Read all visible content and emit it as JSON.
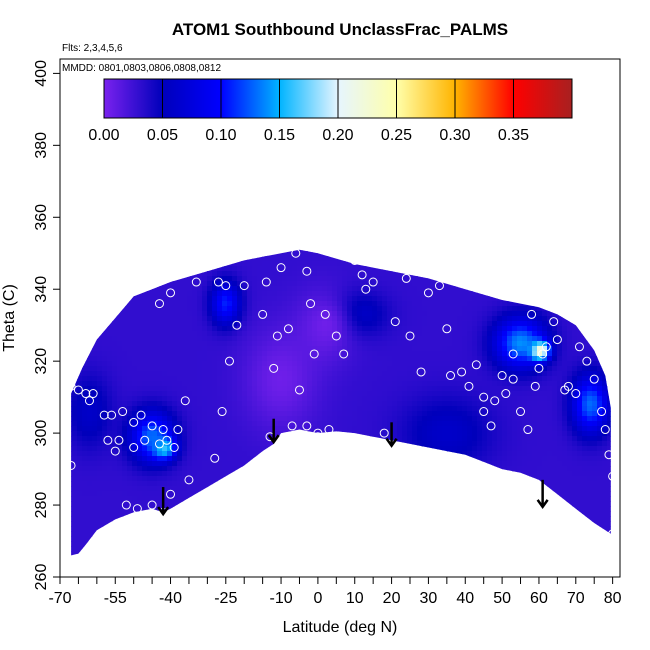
{
  "chart_data": {
    "type": "heatmap",
    "title": "ATOM1 Southbound UnclassFrac_PALMS",
    "flights_note": "Flts: 2,3,4,5,6",
    "dates_note": "MMDD: 0801,0803,0806,0808,0812",
    "xlabel": "Latitude (deg N)",
    "ylabel": "Theta (C)",
    "xlim": [
      -70,
      82
    ],
    "ylim": [
      260,
      404
    ],
    "x_major_ticks": [
      -70,
      -55,
      -40,
      -25,
      -10,
      0,
      10,
      20,
      30,
      40,
      50,
      60,
      70,
      80
    ],
    "x_tick_labels": [
      "-70",
      "-55",
      "-40",
      "-25",
      "-10",
      "0",
      "10",
      "20",
      "30",
      "40",
      "50",
      "60",
      "70",
      "80"
    ],
    "x_minor_ticks": [
      -65,
      -60,
      -50,
      -45,
      -35,
      -30,
      -20,
      -15,
      -5,
      5,
      15,
      25,
      35,
      45,
      55,
      65,
      75
    ],
    "y_ticks": [
      260,
      280,
      300,
      320,
      340,
      360,
      380,
      400
    ],
    "y_tick_labels": [
      "260",
      "280",
      "300",
      "320",
      "340",
      "360",
      "380",
      "400"
    ],
    "colorbar": {
      "range": [
        0,
        0.4
      ],
      "ticks": [
        0.0,
        0.05,
        0.1,
        0.15,
        0.2,
        0.25,
        0.3,
        0.35
      ],
      "tick_labels": [
        "0.00",
        "0.05",
        "0.10",
        "0.15",
        "0.20",
        "0.25",
        "0.30",
        "0.35"
      ],
      "colors": [
        "#7a22ee",
        "#0000bb",
        "#0000ff",
        "#00b4ff",
        "#e6f5ff",
        "#ffffaa",
        "#ffb400",
        "#ff0000",
        "#a82020"
      ]
    },
    "field_background": 0.03,
    "hotspots": [
      {
        "lat": 60,
        "theta": 323,
        "value": 0.33,
        "spread_lat": 2.5,
        "spread_theta": 2.5
      },
      {
        "lat": 55,
        "theta": 325,
        "value": 0.14,
        "spread_lat": 7,
        "spread_theta": 7
      },
      {
        "lat": -42,
        "theta": 296,
        "value": 0.21,
        "spread_lat": 3,
        "spread_theta": 3
      },
      {
        "lat": -45,
        "theta": 299,
        "value": 0.13,
        "spread_lat": 6,
        "spread_theta": 7
      },
      {
        "lat": 74,
        "theta": 308,
        "value": 0.13,
        "spread_lat": 5,
        "spread_theta": 8
      },
      {
        "lat": -25,
        "theta": 336,
        "value": 0.11,
        "spread_lat": 4,
        "spread_theta": 6
      },
      {
        "lat": -62,
        "theta": 306,
        "value": 0.06,
        "spread_lat": 6,
        "spread_theta": 10
      },
      {
        "lat": 10,
        "theta": 333,
        "value": 0.07,
        "spread_lat": 8,
        "spread_theta": 6
      },
      {
        "lat": 35,
        "theta": 300,
        "value": 0.06,
        "spread_lat": 12,
        "spread_theta": 10
      },
      {
        "lat": -10,
        "theta": 315,
        "value": 0.005,
        "spread_lat": 10,
        "spread_theta": 14
      },
      {
        "lat": 2,
        "theta": 330,
        "value": 0.005,
        "spread_lat": 8,
        "spread_theta": 10
      }
    ],
    "upper_boundary": [
      [
        -67,
        311
      ],
      [
        -64,
        318
      ],
      [
        -60,
        326
      ],
      [
        -55,
        332
      ],
      [
        -50,
        338
      ],
      [
        -45,
        340
      ],
      [
        -40,
        342
      ],
      [
        -30,
        345
      ],
      [
        -20,
        348
      ],
      [
        -15,
        349
      ],
      [
        -10,
        350
      ],
      [
        -5,
        351
      ],
      [
        0,
        350
      ],
      [
        10,
        347
      ],
      [
        20,
        345
      ],
      [
        30,
        343
      ],
      [
        40,
        340
      ],
      [
        50,
        337
      ],
      [
        55,
        336
      ],
      [
        60,
        335
      ],
      [
        65,
        333
      ],
      [
        70,
        330
      ],
      [
        75,
        323
      ],
      [
        78,
        316
      ],
      [
        79.5,
        307
      ]
    ],
    "lower_boundary": [
      [
        79.5,
        272
      ],
      [
        75,
        275
      ],
      [
        70,
        279
      ],
      [
        65,
        283
      ],
      [
        60,
        287
      ],
      [
        55,
        289
      ],
      [
        50,
        290
      ],
      [
        45,
        292
      ],
      [
        40,
        294
      ],
      [
        35,
        295
      ],
      [
        30,
        296
      ],
      [
        25,
        297
      ],
      [
        20,
        298
      ],
      [
        15,
        299
      ],
      [
        10,
        300
      ],
      [
        5,
        300.5
      ],
      [
        0,
        300
      ],
      [
        -5,
        301
      ],
      [
        -10,
        300
      ],
      [
        -12,
        297
      ],
      [
        -15,
        295
      ],
      [
        -20,
        291
      ],
      [
        -25,
        288
      ],
      [
        -30,
        285
      ],
      [
        -35,
        282
      ],
      [
        -40,
        279
      ],
      [
        -42,
        278
      ],
      [
        -45,
        279
      ],
      [
        -50,
        278
      ],
      [
        -55,
        276
      ],
      [
        -60,
        273
      ],
      [
        -63,
        269
      ],
      [
        -65,
        266.5
      ],
      [
        -67,
        266
      ]
    ],
    "sample_points": [
      [
        -67,
        313
      ],
      [
        -65,
        312
      ],
      [
        -63,
        311
      ],
      [
        -62,
        309
      ],
      [
        -61,
        311
      ],
      [
        -58,
        305
      ],
      [
        -56,
        305
      ],
      [
        -53,
        306
      ],
      [
        -50,
        303
      ],
      [
        -48,
        305
      ],
      [
        -45,
        302
      ],
      [
        -43,
        297
      ],
      [
        -42,
        301
      ],
      [
        -41,
        298
      ],
      [
        -39,
        296
      ],
      [
        -38,
        301
      ],
      [
        -36,
        309
      ],
      [
        -47,
        298
      ],
      [
        -50,
        296
      ],
      [
        -54,
        298
      ],
      [
        -57,
        298
      ],
      [
        -55,
        295
      ],
      [
        -67,
        291
      ],
      [
        -52,
        280
      ],
      [
        -49,
        279
      ],
      [
        -45,
        280
      ],
      [
        -42,
        278
      ],
      [
        -40,
        283
      ],
      [
        -35,
        287
      ],
      [
        -28,
        293
      ],
      [
        -26,
        306
      ],
      [
        -24,
        320
      ],
      [
        -22,
        330
      ],
      [
        -20,
        341
      ],
      [
        -25,
        341
      ],
      [
        -27,
        342
      ],
      [
        -15,
        333
      ],
      [
        -12,
        318
      ],
      [
        -11,
        327
      ],
      [
        -8,
        329
      ],
      [
        -7,
        302
      ],
      [
        -3,
        302
      ],
      [
        -13,
        299
      ],
      [
        -14,
        342
      ],
      [
        -10,
        346
      ],
      [
        -3,
        345
      ],
      [
        0,
        299
      ],
      [
        0,
        300
      ],
      [
        3,
        301
      ],
      [
        5,
        327
      ],
      [
        7,
        322
      ],
      [
        10,
        348
      ],
      [
        12,
        344
      ],
      [
        13,
        340
      ],
      [
        15,
        342
      ],
      [
        17,
        349
      ],
      [
        20,
        347
      ],
      [
        24,
        343
      ],
      [
        27,
        346
      ],
      [
        30,
        339
      ],
      [
        33,
        341
      ],
      [
        35,
        329
      ],
      [
        36,
        316
      ],
      [
        39,
        317
      ],
      [
        41,
        313
      ],
      [
        43,
        319
      ],
      [
        45,
        306
      ],
      [
        47,
        302
      ],
      [
        48,
        309
      ],
      [
        50,
        316
      ],
      [
        51,
        311
      ],
      [
        53,
        315
      ],
      [
        55,
        306
      ],
      [
        57,
        301
      ],
      [
        59,
        313
      ],
      [
        60,
        318
      ],
      [
        61,
        322
      ],
      [
        62,
        324
      ],
      [
        64,
        331
      ],
      [
        65,
        326
      ],
      [
        67,
        312
      ],
      [
        68,
        313
      ],
      [
        70,
        311
      ],
      [
        71,
        324
      ],
      [
        73,
        320
      ],
      [
        75,
        315
      ],
      [
        77,
        306
      ],
      [
        78,
        301
      ],
      [
        79,
        294
      ],
      [
        80,
        288
      ],
      [
        81,
        287
      ],
      [
        80,
        272
      ],
      [
        -62,
        342
      ],
      [
        -54,
        343
      ],
      [
        -43,
        336
      ],
      [
        -40,
        339
      ],
      [
        -33,
        342
      ],
      [
        -2,
        336
      ],
      [
        2,
        333
      ],
      [
        21,
        331
      ],
      [
        -5,
        312
      ],
      [
        -1,
        322
      ],
      [
        25,
        327
      ],
      [
        28,
        317
      ],
      [
        45,
        310
      ],
      [
        53,
        322
      ],
      [
        58,
        333
      ],
      [
        18,
        300
      ],
      [
        22,
        296
      ],
      [
        -6,
        350
      ]
    ],
    "arrows": [
      {
        "lat": -42,
        "theta_from": 285,
        "theta_to": 277.5
      },
      {
        "lat": -12,
        "theta_from": 304,
        "theta_to": 297.5
      },
      {
        "lat": 20,
        "theta_from": 303,
        "theta_to": 296.5
      },
      {
        "lat": 61,
        "theta_from": 287,
        "theta_to": 279.5
      }
    ]
  }
}
